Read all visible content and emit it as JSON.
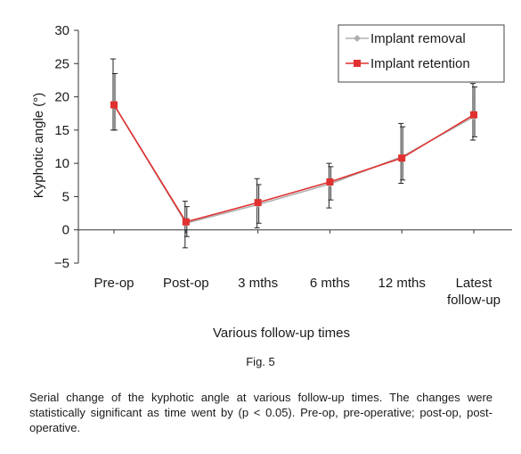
{
  "chart_data": {
    "type": "line",
    "categories": [
      "Pre-op",
      "Post-op",
      "3 mths",
      "6 mths",
      "12 mths",
      "Latest follow-up"
    ],
    "category_lines": [
      [
        "Pre-op"
      ],
      [
        "Post-op"
      ],
      [
        "3 mths"
      ],
      [
        "6 mths"
      ],
      [
        "12 mths"
      ],
      [
        "Latest",
        "follow-up"
      ]
    ],
    "xlabel": "Various follow-up times",
    "ylabel": "Kyphotic angle (°)",
    "ylim": [
      -5,
      30
    ],
    "yticks": [
      -5,
      0,
      5,
      10,
      15,
      20,
      25,
      30
    ],
    "grid": false,
    "legend_position": "top-right",
    "series": [
      {
        "name": "Implant removal",
        "color": "#b0b0b0",
        "marker": "diamond",
        "values": [
          18.8,
          1.0,
          3.8,
          6.9,
          11.0,
          17.0
        ],
        "err_low": [
          15.0,
          -2.7,
          0.3,
          3.3,
          7.0,
          13.5
        ],
        "err_high": [
          25.7,
          4.3,
          7.7,
          10.0,
          16.0,
          22.0
        ]
      },
      {
        "name": "Implant retention",
        "color": "#e03030",
        "marker": "square",
        "values": [
          18.8,
          1.2,
          4.1,
          7.2,
          10.8,
          17.3
        ],
        "err_low": [
          15.0,
          -1.0,
          1.0,
          4.5,
          7.5,
          14.0
        ],
        "err_high": [
          23.5,
          3.5,
          6.8,
          9.5,
          15.5,
          21.5
        ]
      }
    ]
  },
  "figure": {
    "label": "Fig. 5",
    "caption": "Serial change of the kyphotic angle at various follow-up times. The changes were statistically significant as time went by (p < 0.05). Pre-op, pre-operative; post-op, post-operative."
  }
}
